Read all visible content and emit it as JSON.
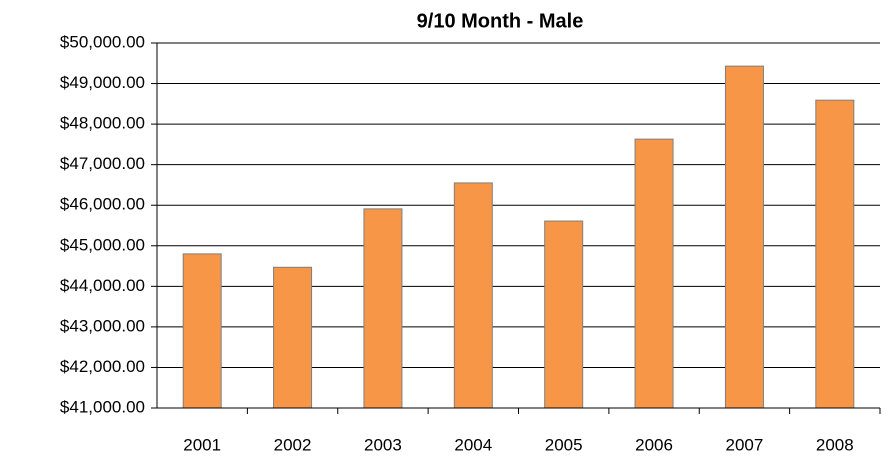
{
  "chart_data": {
    "type": "bar",
    "title": "9/10 Month - Male",
    "categories": [
      "2001",
      "2002",
      "2003",
      "2004",
      "2005",
      "2006",
      "2007",
      "2008"
    ],
    "values": [
      44800,
      44470,
      45910,
      46550,
      45610,
      47630,
      49430,
      48590
    ],
    "color": "#f79646",
    "ylim": [
      41000,
      50000
    ],
    "yticks": [
      {
        "value": 41000,
        "label": "$41,000.00"
      },
      {
        "value": 42000,
        "label": "$42,000.00"
      },
      {
        "value": 43000,
        "label": "$43,000.00"
      },
      {
        "value": 44000,
        "label": "$44,000.00"
      },
      {
        "value": 45000,
        "label": "$45,000.00"
      },
      {
        "value": 46000,
        "label": "$46,000.00"
      },
      {
        "value": 47000,
        "label": "$47,000.00"
      },
      {
        "value": 48000,
        "label": "$48,000.00"
      },
      {
        "value": 49000,
        "label": "$49,000.00"
      },
      {
        "value": 50000,
        "label": "$50,000.00"
      }
    ],
    "grid": true
  }
}
